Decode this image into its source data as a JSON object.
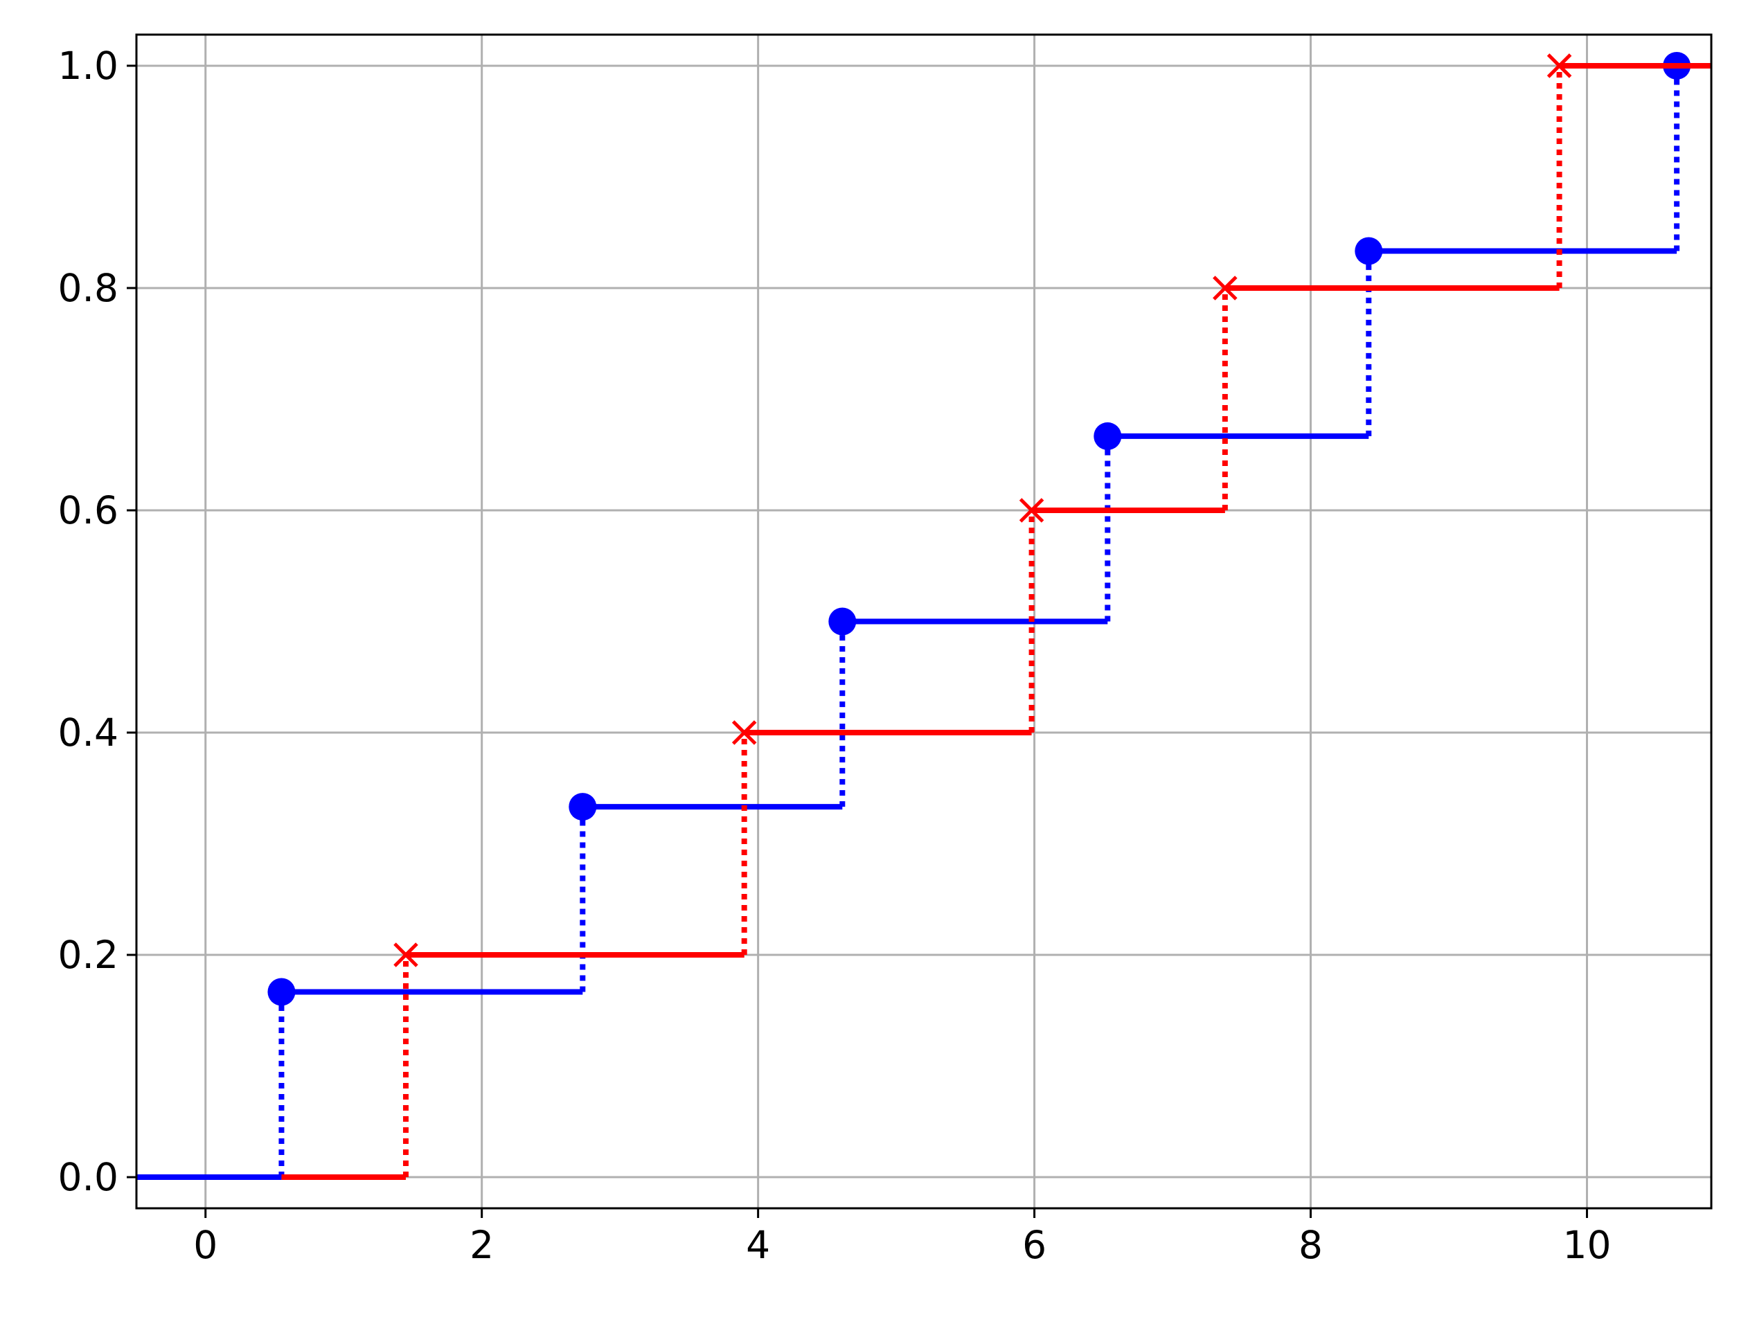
{
  "chart_data": {
    "type": "line",
    "title": "",
    "xlabel": "",
    "ylabel": "",
    "xlim": [
      -0.5,
      10.9
    ],
    "ylim": [
      -0.028,
      1.028
    ],
    "xticks": [
      0,
      2,
      4,
      6,
      8,
      10
    ],
    "xtick_labels": [
      "0",
      "2",
      "4",
      "6",
      "8",
      "10"
    ],
    "yticks": [
      0.0,
      0.2,
      0.4,
      0.6,
      0.8,
      1.0
    ],
    "ytick_labels": [
      "0.0",
      "0.2",
      "0.4",
      "0.6",
      "0.8",
      "1.0"
    ],
    "grid": true,
    "series": [
      {
        "style": "step-post",
        "color": "#0000ff",
        "marker": "circle",
        "x": [
          0.55,
          2.73,
          4.61,
          6.53,
          8.42,
          10.65
        ],
        "y": [
          0.1667,
          0.3333,
          0.5,
          0.6667,
          0.8333,
          1.0
        ]
      },
      {
        "style": "step-post",
        "color": "#ff0000",
        "marker": "x",
        "x": [
          1.45,
          3.9,
          5.98,
          7.38,
          9.8
        ],
        "y": [
          0.2,
          0.4,
          0.6,
          0.8,
          1.0
        ]
      }
    ]
  }
}
